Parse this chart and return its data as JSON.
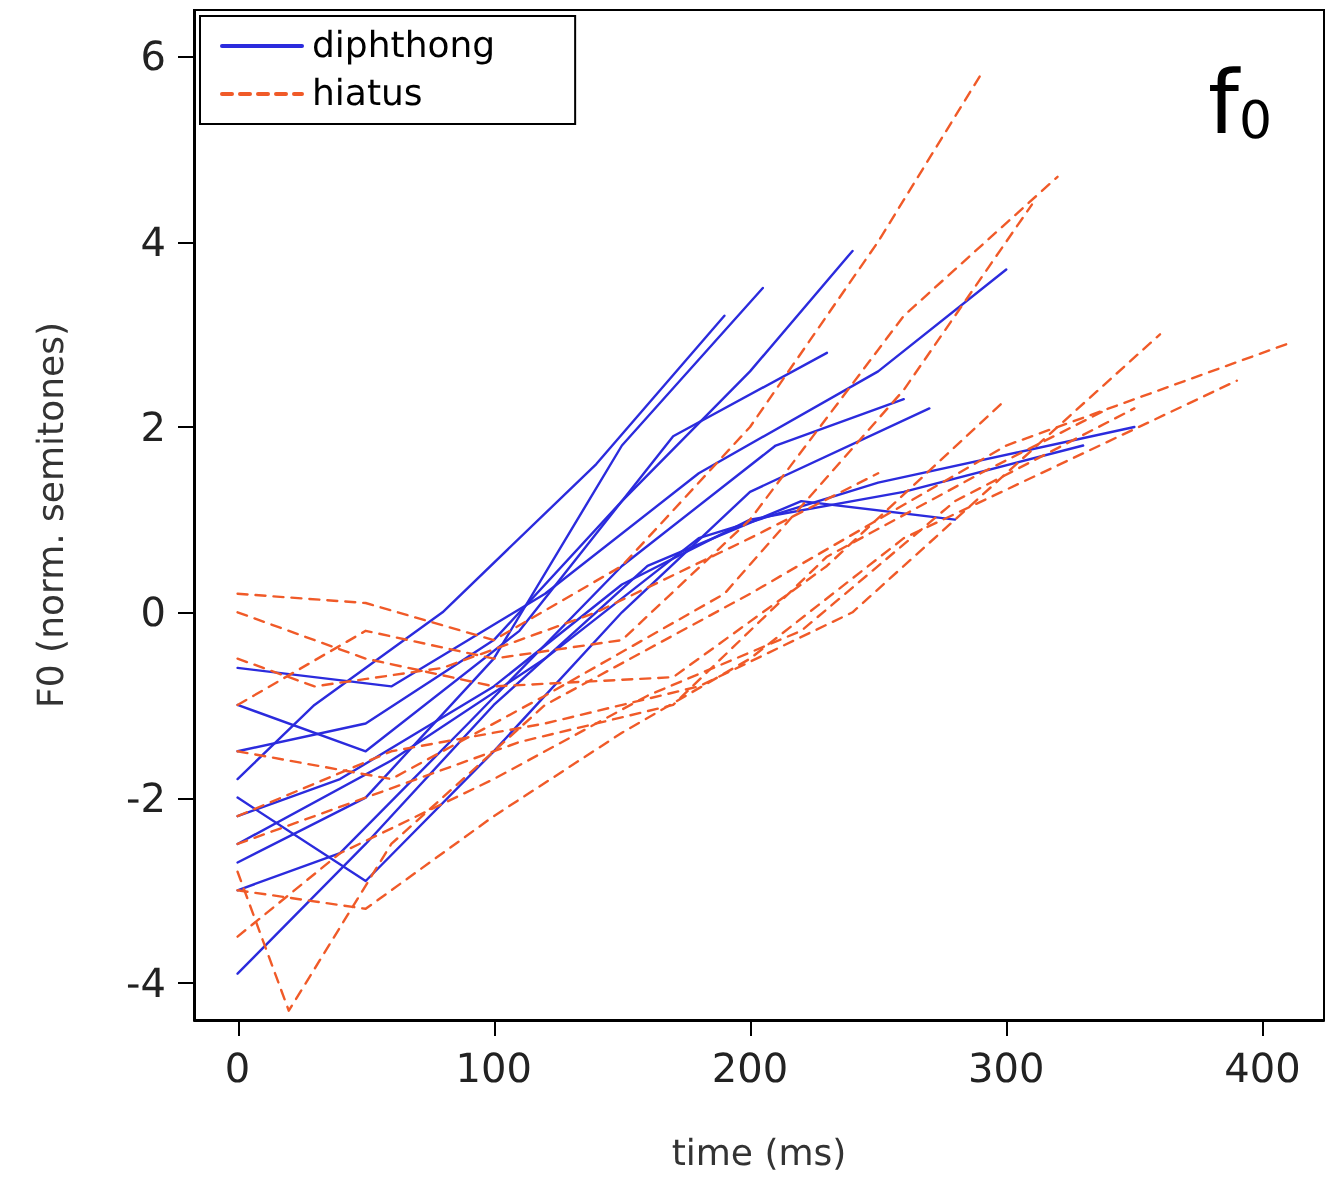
{
  "chart_data": {
    "type": "line",
    "xlabel": "time (ms)",
    "ylabel": "F0 (norm. semitones)",
    "annotations": [
      "f$_{0}$"
    ],
    "xlim": [
      -17,
      424
    ],
    "ylim": [
      -4.4,
      6.5
    ],
    "xticks": [
      0,
      100,
      200,
      300,
      400
    ],
    "yticks": [
      -4,
      -2,
      0,
      2,
      4,
      6
    ],
    "grid": false,
    "legend": "top left",
    "marker": "none",
    "series": [
      {
        "name": "diphthong",
        "color": "#2b2bdd",
        "line_style": "solid",
        "x": [
          0,
          50,
          100,
          150,
          200,
          240
        ],
        "values": [
          -1.5,
          -1.2,
          -0.3,
          1.2,
          2.6,
          3.9
        ]
      },
      {
        "color": "#2b2bdd",
        "line_style": "solid",
        "x": [
          0,
          50,
          100,
          150,
          205
        ],
        "values": [
          -2.7,
          -2.0,
          -0.5,
          1.8,
          3.5
        ]
      },
      {
        "color": "#2b2bdd",
        "line_style": "solid",
        "x": [
          0,
          60,
          120,
          180,
          250,
          300
        ],
        "values": [
          -0.6,
          -0.8,
          0.2,
          1.5,
          2.6,
          3.7
        ]
      },
      {
        "color": "#2b2bdd",
        "line_style": "solid",
        "x": [
          0,
          50,
          100,
          160,
          220,
          280
        ],
        "values": [
          -3.9,
          -2.5,
          -1.0,
          0.5,
          1.2,
          1.0
        ]
      },
      {
        "color": "#2b2bdd",
        "line_style": "solid",
        "x": [
          0,
          40,
          100,
          150,
          200,
          260,
          330
        ],
        "values": [
          -2.2,
          -1.8,
          -0.8,
          0.3,
          1.0,
          1.3,
          1.8
        ]
      },
      {
        "color": "#2b2bdd",
        "line_style": "solid",
        "x": [
          0,
          50,
          110,
          170,
          230
        ],
        "values": [
          -1.0,
          -1.5,
          -0.2,
          1.9,
          2.8
        ]
      },
      {
        "color": "#2b2bdd",
        "line_style": "solid",
        "x": [
          0,
          60,
          120,
          180,
          250,
          350
        ],
        "values": [
          -2.5,
          -1.6,
          -0.5,
          0.8,
          1.4,
          2.0
        ]
      },
      {
        "color": "#2b2bdd",
        "line_style": "solid",
        "x": [
          0,
          40,
          90,
          150,
          210,
          260
        ],
        "values": [
          -3.0,
          -2.6,
          -1.2,
          0.5,
          1.8,
          2.3
        ]
      },
      {
        "color": "#2b2bdd",
        "line_style": "solid",
        "x": [
          0,
          30,
          80,
          140,
          190
        ],
        "values": [
          -1.8,
          -1.0,
          0.0,
          1.6,
          3.2
        ]
      },
      {
        "color": "#2b2bdd",
        "line_style": "solid",
        "x": [
          0,
          50,
          100,
          150,
          200,
          270
        ],
        "values": [
          -2.0,
          -2.9,
          -1.5,
          0.0,
          1.3,
          2.2
        ]
      },
      {
        "name": "hiatus",
        "color": "#f05a28",
        "line_style": "dashed",
        "x": [
          0,
          50,
          100,
          150,
          200,
          250,
          290
        ],
        "values": [
          0.2,
          0.1,
          -0.3,
          0.5,
          2.0,
          4.0,
          5.8
        ]
      },
      {
        "color": "#f05a28",
        "line_style": "dashed",
        "x": [
          0,
          20,
          60,
          120,
          200,
          300,
          410
        ],
        "values": [
          -2.8,
          -4.3,
          -2.5,
          -1.0,
          0.2,
          1.8,
          2.9
        ]
      },
      {
        "color": "#f05a28",
        "line_style": "dashed",
        "x": [
          0,
          50,
          100,
          150,
          200,
          260,
          320
        ],
        "values": [
          -1.0,
          -0.2,
          -0.5,
          -0.3,
          1.0,
          3.2,
          4.7
        ]
      },
      {
        "color": "#f05a28",
        "line_style": "dashed",
        "x": [
          0,
          60,
          120,
          180,
          240,
          300,
          360
        ],
        "values": [
          -2.2,
          -1.5,
          -1.2,
          -0.8,
          0.0,
          1.5,
          3.0
        ]
      },
      {
        "color": "#f05a28",
        "line_style": "dashed",
        "x": [
          0,
          50,
          100,
          170,
          230,
          300
        ],
        "values": [
          0.0,
          -0.5,
          -0.8,
          -0.7,
          0.5,
          2.3
        ]
      },
      {
        "color": "#f05a28",
        "line_style": "dashed",
        "x": [
          0,
          40,
          100,
          160,
          220,
          280,
          350
        ],
        "values": [
          -3.5,
          -2.6,
          -1.8,
          -0.9,
          -0.2,
          1.2,
          2.2
        ]
      },
      {
        "color": "#f05a28",
        "line_style": "dashed",
        "x": [
          0,
          60,
          120,
          190,
          260,
          310
        ],
        "values": [
          -1.5,
          -1.8,
          -0.9,
          0.2,
          2.4,
          4.4
        ]
      },
      {
        "color": "#f05a28",
        "line_style": "dashed",
        "x": [
          0,
          50,
          110,
          170,
          230,
          290,
          340
        ],
        "values": [
          -2.5,
          -2.0,
          -1.4,
          -1.0,
          0.6,
          1.5,
          2.2
        ]
      },
      {
        "color": "#f05a28",
        "line_style": "dashed",
        "x": [
          0,
          30,
          80,
          140,
          200,
          250
        ],
        "values": [
          -0.5,
          -0.8,
          -0.6,
          0.0,
          0.8,
          1.5
        ]
      },
      {
        "color": "#f05a28",
        "line_style": "dashed",
        "x": [
          0,
          50,
          100,
          150,
          200,
          260,
          390
        ],
        "values": [
          -3.0,
          -3.2,
          -2.2,
          -1.3,
          -0.5,
          0.8,
          2.5
        ]
      }
    ]
  }
}
